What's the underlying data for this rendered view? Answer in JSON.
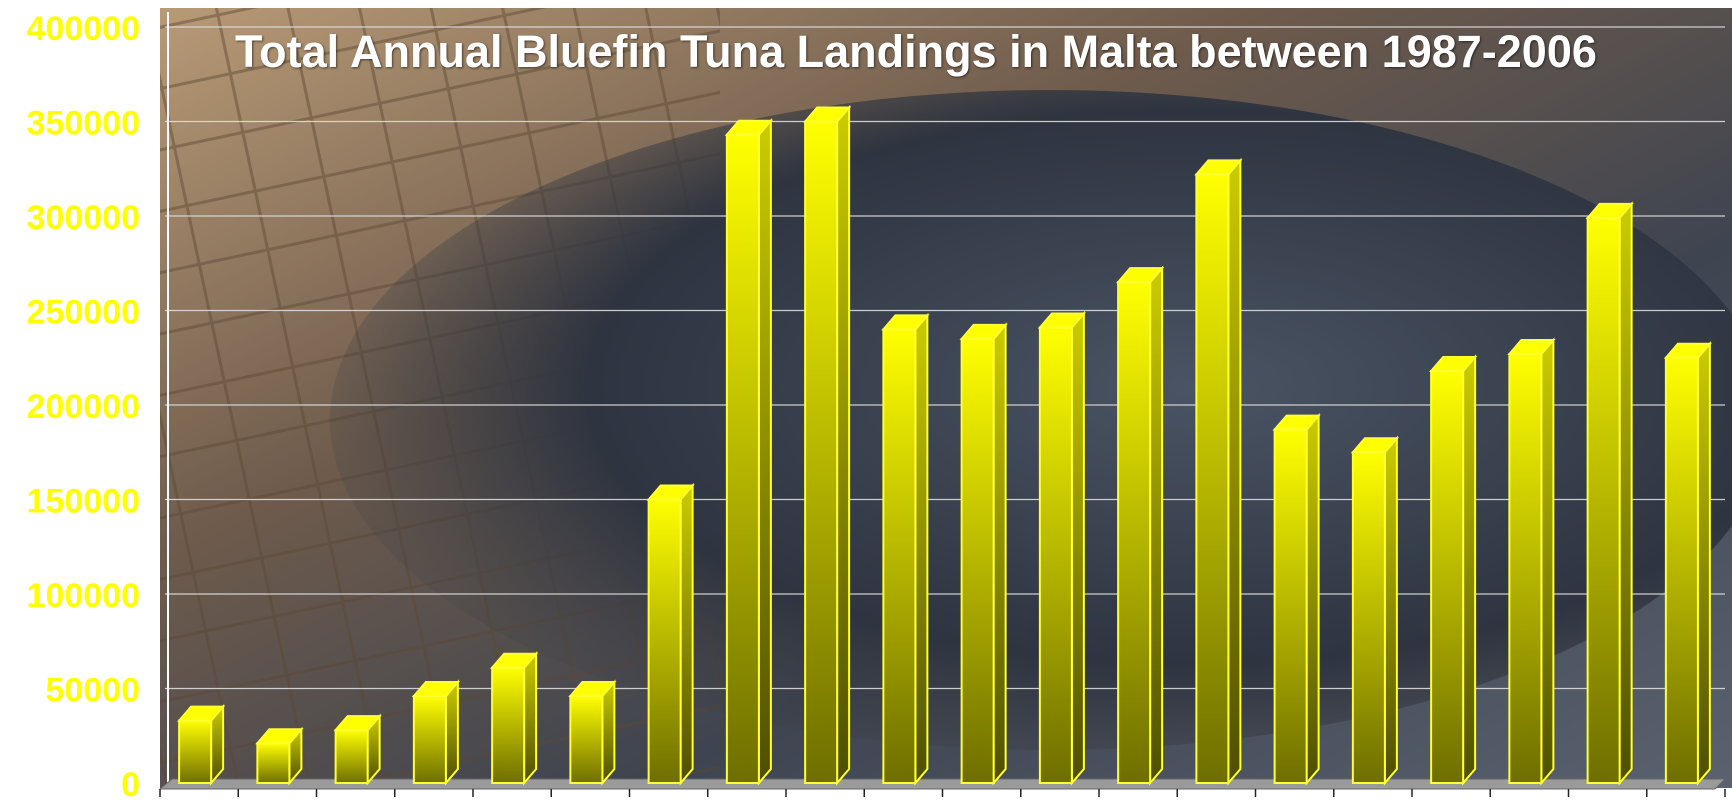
{
  "chart_data": {
    "type": "bar",
    "title": "Total Annual Bluefin Tuna Landings in Malta between 1987-2006",
    "xlabel": "",
    "ylabel": "",
    "categories": [
      "",
      "",
      "",
      "",
      "",
      "",
      "",
      "",
      "",
      "",
      "",
      "",
      "",
      "",
      "",
      "",
      "",
      "",
      "",
      ""
    ],
    "values": [
      33000,
      21000,
      28000,
      46000,
      61000,
      46000,
      150000,
      343000,
      350000,
      240000,
      235000,
      241000,
      265000,
      322000,
      187000,
      175000,
      218000,
      227000,
      299000,
      225000
    ],
    "ylim": [
      0,
      400000
    ],
    "yticks": [
      "0",
      "50000",
      "100000",
      "150000",
      "200000",
      "250000",
      "300000",
      "350000",
      "400000"
    ],
    "grid": true,
    "colors": {
      "bar": "#ffff00",
      "bar_dark": "#7a7a00",
      "bar_edge": "#ffff33",
      "tick_label": "#ffff00",
      "title": "#ffffff",
      "gridline": "#dddddd"
    }
  }
}
